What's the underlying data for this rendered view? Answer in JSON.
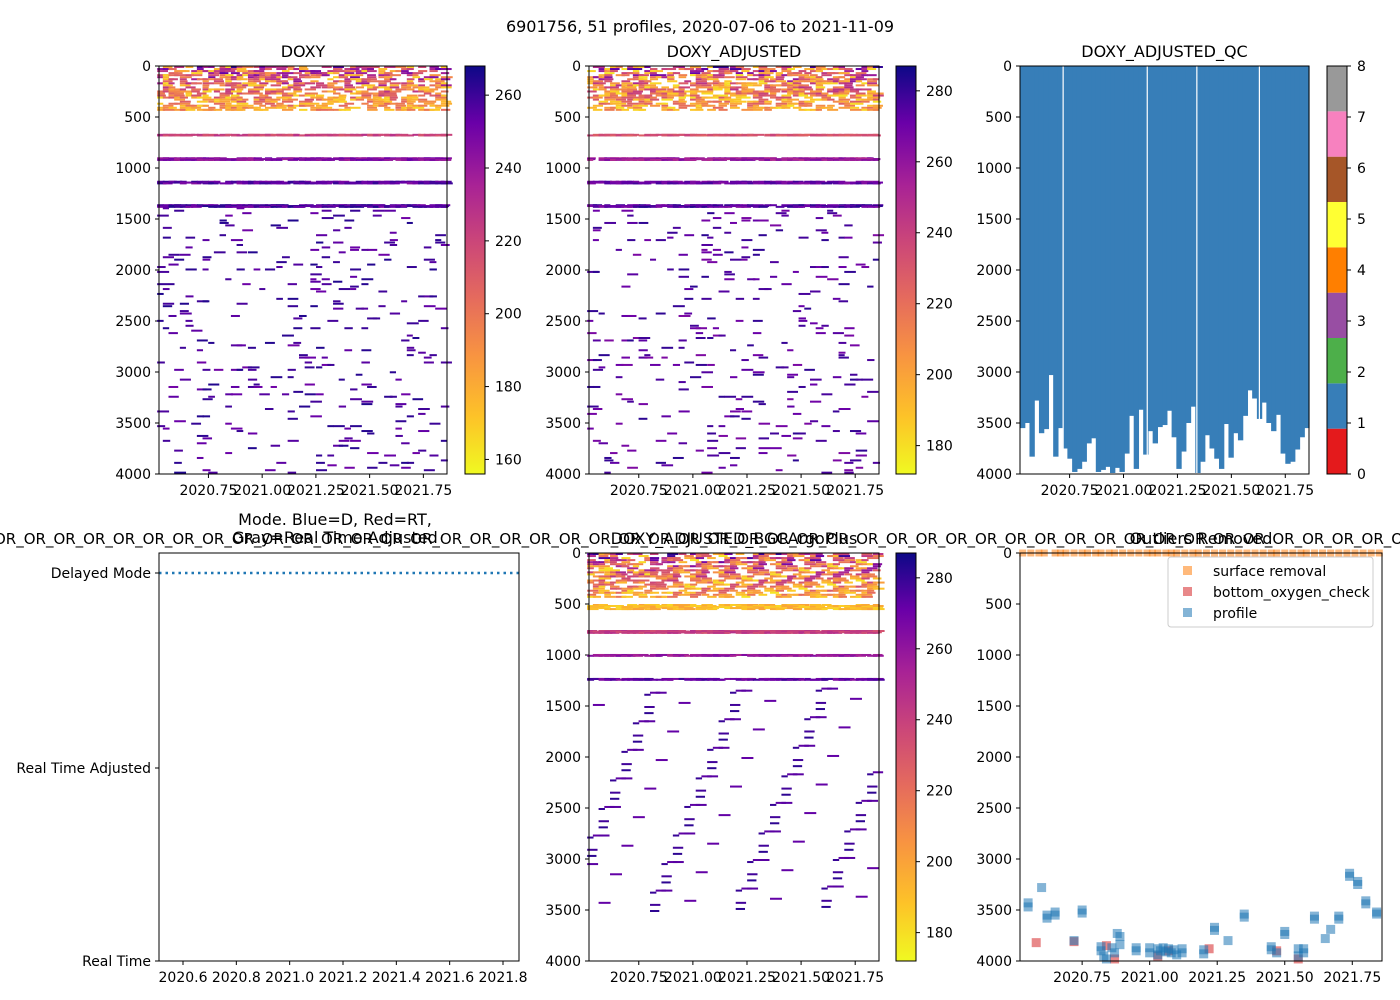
{
  "figure": {
    "suptitle": "6901756, 51 profiles, 2020-07-06 to 2021-11-09",
    "ribbon_text": "OR_OR_OR_OR_OR_OR_OR_OR_OR_OR_OR_OR_OR_OR_OR_OR_OR_OR_OR_OR_OR_OR_OR_OR_OR_OR_OR_OR_OR_OR_OR_OR_OR_OR_OR_OR_OR_OR_OR_OR_OR_OR_OR_OR_OR_OR_OR_OR_OR_OR_OR_OR_OR_OR_OR_OR_OR_OR_OR_OR_OR_OR_OR_OR_OR_OR_OR_"
  },
  "chart_data": [
    {
      "id": "doxy",
      "type": "heatmap",
      "title": "DOXY",
      "colormap": "plasma_r",
      "x_ticks": [
        "2020.75",
        "2021.00",
        "2021.25",
        "2021.50",
        "2021.75"
      ],
      "x_tick_values": [
        2020.75,
        2021.0,
        2021.25,
        2021.5,
        2021.75
      ],
      "xlim": [
        2020.52,
        2021.86
      ],
      "y_ticks": [
        "0",
        "500",
        "1000",
        "1500",
        "2000",
        "2500",
        "3000",
        "3500",
        "4000"
      ],
      "ylim": [
        0,
        4000
      ],
      "y_inverted": true,
      "colorbar": {
        "ticks": [
          "160",
          "180",
          "200",
          "220",
          "240",
          "260"
        ],
        "tick_values": [
          160,
          180,
          200,
          220,
          240,
          260
        ],
        "range": [
          156,
          268
        ]
      },
      "value_bands": [
        {
          "depth": [
            0,
            420
          ],
          "vmin": 165,
          "vmax": 262,
          "density": 0.55,
          "step": 20
        },
        {
          "depth": [
            665,
            675
          ],
          "vmin": 212,
          "vmax": 230,
          "density": 0.9,
          "step": 6
        },
        {
          "depth": [
            895,
            915
          ],
          "vmin": 238,
          "vmax": 252,
          "density": 0.9,
          "step": 8
        },
        {
          "depth": [
            1125,
            1145
          ],
          "vmin": 245,
          "vmax": 262,
          "density": 0.85,
          "step": 8
        },
        {
          "depth": [
            1355,
            1375
          ],
          "vmin": 248,
          "vmax": 265,
          "density": 0.85,
          "step": 8
        },
        {
          "depth": [
            1385,
            4000
          ],
          "vmin": 250,
          "vmax": 265,
          "density": 0.05,
          "step": 24
        }
      ]
    },
    {
      "id": "doxy_adjusted",
      "type": "heatmap",
      "title": "DOXY_ADJUSTED",
      "colormap": "plasma_r",
      "x_ticks": [
        "2020.75",
        "2021.00",
        "2021.25",
        "2021.50",
        "2021.75"
      ],
      "x_tick_values": [
        2020.75,
        2021.0,
        2021.25,
        2021.5,
        2021.75
      ],
      "xlim": [
        2020.52,
        2021.86
      ],
      "y_ticks": [
        "0",
        "500",
        "1000",
        "1500",
        "2000",
        "2500",
        "3000",
        "3500",
        "4000"
      ],
      "ylim": [
        0,
        4000
      ],
      "y_inverted": true,
      "colorbar": {
        "ticks": [
          "180",
          "200",
          "220",
          "240",
          "260",
          "280"
        ],
        "tick_values": [
          180,
          200,
          220,
          240,
          260,
          280
        ],
        "range": [
          172,
          287
        ]
      },
      "value_bands": [
        {
          "depth": [
            0,
            420
          ],
          "vmin": 178,
          "vmax": 282,
          "density": 0.55,
          "step": 20
        },
        {
          "depth": [
            665,
            675
          ],
          "vmin": 225,
          "vmax": 240,
          "density": 0.9,
          "step": 6
        },
        {
          "depth": [
            895,
            915
          ],
          "vmin": 250,
          "vmax": 265,
          "density": 0.9,
          "step": 8
        },
        {
          "depth": [
            1125,
            1145
          ],
          "vmin": 262,
          "vmax": 278,
          "density": 0.85,
          "step": 8
        },
        {
          "depth": [
            1355,
            1375
          ],
          "vmin": 265,
          "vmax": 283,
          "density": 0.85,
          "step": 8
        },
        {
          "depth": [
            1385,
            4000
          ],
          "vmin": 265,
          "vmax": 282,
          "density": 0.05,
          "step": 24
        }
      ]
    },
    {
      "id": "doxy_adjusted_qc",
      "type": "heatmap",
      "title": "DOXY_ADJUSTED_QC",
      "x_ticks": [
        "2020.75",
        "2021.00",
        "2021.25",
        "2021.50",
        "2021.75"
      ],
      "x_tick_values": [
        2020.75,
        2021.0,
        2021.25,
        2021.5,
        2021.75
      ],
      "xlim": [
        2020.52,
        2021.86
      ],
      "y_ticks": [
        "0",
        "500",
        "1000",
        "1500",
        "2000",
        "2500",
        "3000",
        "3500",
        "4000"
      ],
      "ylim": [
        0,
        4000
      ],
      "y_inverted": true,
      "qc_value": 1,
      "colorbar": {
        "ticks": [
          "0",
          "1",
          "2",
          "3",
          "4",
          "5",
          "6",
          "7",
          "8"
        ],
        "tick_values": [
          0,
          1,
          2,
          3,
          4,
          5,
          6,
          7,
          8
        ],
        "categories": [
          {
            "value": 0,
            "color": "#e41a1c"
          },
          {
            "value": 1,
            "color": "#377eb8"
          },
          {
            "value": 2,
            "color": "#4daf4a"
          },
          {
            "value": 3,
            "color": "#984ea3"
          },
          {
            "value": 4,
            "color": "#ff7f00"
          },
          {
            "value": 5,
            "color": "#ffff33"
          },
          {
            "value": 6,
            "color": "#a65628"
          },
          {
            "value": 7,
            "color": "#f781bf"
          },
          {
            "value": 8,
            "color": "#999999"
          }
        ]
      },
      "profile_gap_times": [
        2020.72,
        2021.11,
        2021.34,
        2021.63
      ],
      "profile_bottom_depths": [
        3550,
        3500,
        3830,
        3280,
        3600,
        3560,
        3030,
        3830,
        3550,
        3750,
        3850,
        3980,
        3950,
        3880,
        3700,
        3650,
        3980,
        3960,
        3930,
        3990,
        3940,
        3980,
        3800,
        3430,
        3950,
        3370,
        3810,
        3580,
        3700,
        3540,
        3520,
        3380,
        3640,
        3950,
        3780,
        3500,
        3340,
        3990,
        3880,
        3620,
        3750,
        3850,
        3950,
        3510,
        3840,
        3600,
        3670,
        3430,
        3180,
        3260,
        3460,
        3300,
        3500,
        3580,
        3420,
        3800,
        3900,
        3880,
        3760,
        3640,
        3550
      ]
    },
    {
      "id": "mode",
      "type": "line",
      "title": "Mode. Blue=D, Red=RT,\nGray=Real Time Adjusted",
      "title_lines": [
        "Mode. Blue=D, Red=RT,",
        "Gray=Real Time Adjusted"
      ],
      "categories": [
        "Delayed Mode",
        "Real Time Adjusted",
        "Real Time"
      ],
      "x_ticks": [
        "2020.6",
        "2020.8",
        "2021.0",
        "2021.2",
        "2021.4",
        "2021.6",
        "2021.8"
      ],
      "x_tick_values": [
        2020.6,
        2020.8,
        2021.0,
        2021.2,
        2021.4,
        2021.6,
        2021.8
      ],
      "xlim": [
        2020.51,
        2021.86
      ],
      "series": [
        {
          "name": "Delayed Mode",
          "style": "dotted",
          "color": "#1f77b4",
          "x": [
            2020.51,
            2021.86
          ],
          "y": [
            "Delayed Mode",
            "Delayed Mode"
          ]
        }
      ]
    },
    {
      "id": "doxy_adjusted_bgcargoplus",
      "type": "heatmap",
      "title": "DOXY_ADJUSTED_BGCArgoPlus",
      "colormap": "plasma_r",
      "x_ticks": [
        "2020.75",
        "2021.00",
        "2021.25",
        "2021.50",
        "2021.75"
      ],
      "x_tick_values": [
        2020.75,
        2021.0,
        2021.25,
        2021.5,
        2021.75
      ],
      "xlim": [
        2020.52,
        2021.86
      ],
      "y_ticks": [
        "0",
        "500",
        "1000",
        "1500",
        "2000",
        "2500",
        "3000",
        "3500",
        "4000"
      ],
      "ylim": [
        0,
        4000
      ],
      "y_inverted": true,
      "colorbar": {
        "ticks": [
          "180",
          "200",
          "220",
          "240",
          "260",
          "280"
        ],
        "tick_values": [
          180,
          200,
          220,
          240,
          260,
          280
        ],
        "range": [
          172,
          287
        ]
      },
      "value_bands": [
        {
          "depth": [
            0,
            420
          ],
          "vmin": 178,
          "vmax": 282,
          "density": 0.6,
          "step": 20
        },
        {
          "depth": [
            500,
            540
          ],
          "vmin": 182,
          "vmax": 200,
          "density": 0.7,
          "step": 10
        },
        {
          "depth": [
            755,
            775
          ],
          "vmin": 232,
          "vmax": 248,
          "density": 0.9,
          "step": 6
        },
        {
          "depth": [
            990,
            1005
          ],
          "vmin": 250,
          "vmax": 265,
          "density": 0.9,
          "step": 8
        },
        {
          "depth": [
            1225,
            1240
          ],
          "vmin": 262,
          "vmax": 278,
          "density": 0.85,
          "step": 8
        },
        {
          "depth": [
            1300,
            3500
          ],
          "vmin": 265,
          "vmax": 282,
          "density": 0.06,
          "step": 20
        }
      ]
    },
    {
      "id": "outliers_removed",
      "type": "scatter",
      "title": "Outliers Removed",
      "x_ticks": [
        "2020.75",
        "2021.00",
        "2021.25",
        "2021.50",
        "2021.75"
      ],
      "x_tick_values": [
        2020.75,
        2021.0,
        2021.25,
        2021.5,
        2021.75
      ],
      "xlim": [
        2020.52,
        2021.86
      ],
      "y_ticks": [
        "0",
        "500",
        "1000",
        "1500",
        "2000",
        "2500",
        "3000",
        "3500",
        "4000"
      ],
      "ylim": [
        0,
        4000
      ],
      "y_inverted": true,
      "legend_position": "upper-right",
      "series": [
        {
          "name": "surface removal",
          "color": "#ff7f0e",
          "alpha": 0.55,
          "x": [
            2020.53,
            2020.56,
            2020.59,
            2020.61,
            2020.65,
            2020.67,
            2020.69,
            2020.72,
            2020.75,
            2020.77,
            2020.8,
            2020.82,
            2020.85,
            2020.87,
            2020.9,
            2020.93,
            2020.96,
            2020.99,
            2021.01,
            2021.03,
            2021.06,
            2021.08,
            2021.1,
            2021.13,
            2021.16,
            2021.18,
            2021.21,
            2021.24,
            2021.27,
            2021.3,
            2021.33,
            2021.36,
            2021.39,
            2021.42,
            2021.45,
            2021.47,
            2021.5,
            2021.53,
            2021.56,
            2021.58,
            2021.61,
            2021.64,
            2021.67,
            2021.7,
            2021.73,
            2021.76,
            2021.79,
            2021.82,
            2021.85
          ],
          "y": [
            0,
            0,
            0,
            0,
            0,
            0,
            0,
            0,
            0,
            0,
            0,
            0,
            0,
            0,
            0,
            0,
            0,
            0,
            0,
            0,
            0,
            0,
            0,
            0,
            0,
            0,
            0,
            0,
            0,
            0,
            0,
            0,
            0,
            0,
            0,
            0,
            0,
            0,
            0,
            0,
            0,
            0,
            0,
            0,
            0,
            0,
            0,
            0,
            0
          ]
        },
        {
          "name": "bottom_oxygen_check",
          "color": "#d62728",
          "alpha": 0.55,
          "x": [
            2020.58,
            2020.72,
            2020.84,
            2020.87,
            2021.03,
            2021.07,
            2021.22,
            2021.47,
            2021.55
          ],
          "y": [
            3820,
            3810,
            3850,
            3980,
            3950,
            3900,
            3880,
            3900,
            3980
          ]
        },
        {
          "name": "profile",
          "color": "#1f77b4",
          "alpha": 0.55,
          "x": [
            2020.55,
            2020.55,
            2020.6,
            2020.62,
            2020.62,
            2020.65,
            2020.65,
            2020.72,
            2020.75,
            2020.75,
            2020.82,
            2020.82,
            2020.83,
            2020.84,
            2020.86,
            2020.87,
            2020.88,
            2020.89,
            2020.89,
            2020.95,
            2020.95,
            2021.0,
            2021.0,
            2021.03,
            2021.03,
            2021.04,
            2021.05,
            2021.06,
            2021.07,
            2021.08,
            2021.09,
            2021.1,
            2021.12,
            2021.12,
            2021.2,
            2021.2,
            2021.24,
            2021.24,
            2021.29,
            2021.35,
            2021.35,
            2021.45,
            2021.45,
            2021.47,
            2021.5,
            2021.5,
            2021.55,
            2021.55,
            2021.57,
            2021.57,
            2021.61,
            2021.61,
            2021.65,
            2021.67,
            2021.7,
            2021.7,
            2021.74,
            2021.74,
            2021.77,
            2021.77,
            2021.8,
            2021.8,
            2021.84,
            2021.84
          ],
          "y": [
            3430,
            3470,
            3280,
            3550,
            3580,
            3520,
            3550,
            3800,
            3500,
            3530,
            3860,
            3900,
            3950,
            3980,
            3870,
            3920,
            3730,
            3760,
            3840,
            3870,
            3900,
            3870,
            3920,
            3880,
            3940,
            3900,
            3870,
            3910,
            3880,
            3920,
            3890,
            3940,
            3880,
            3920,
            3890,
            3930,
            3670,
            3700,
            3800,
            3540,
            3570,
            3860,
            3890,
            3920,
            3710,
            3740,
            3880,
            3950,
            3880,
            3920,
            3560,
            3590,
            3780,
            3690,
            3560,
            3590,
            3140,
            3170,
            3220,
            3250,
            3410,
            3440,
            3520,
            3540
          ]
        }
      ]
    }
  ]
}
